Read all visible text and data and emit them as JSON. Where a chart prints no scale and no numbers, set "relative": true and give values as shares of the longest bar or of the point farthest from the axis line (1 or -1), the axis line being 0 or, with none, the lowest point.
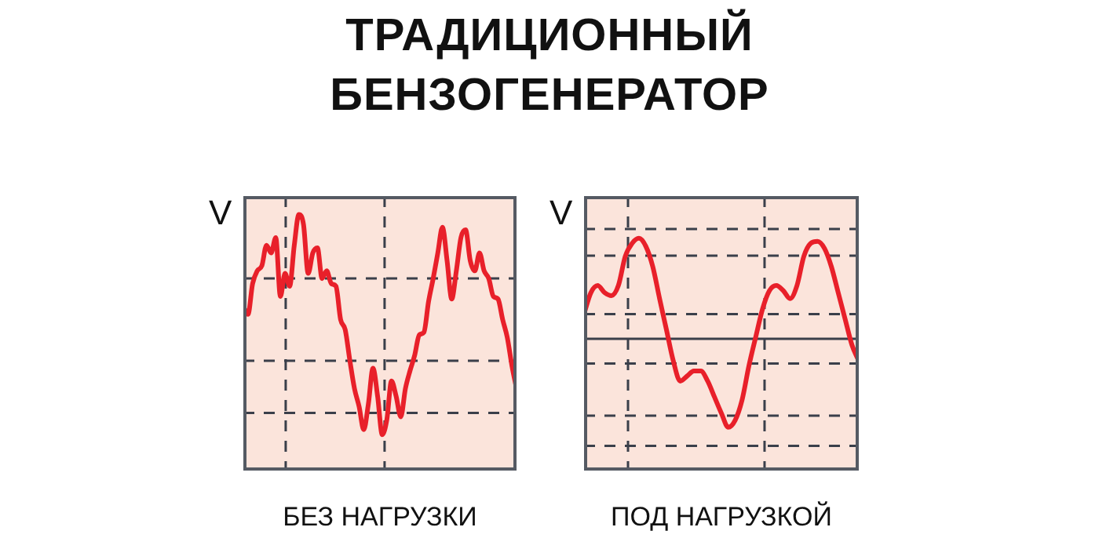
{
  "chart_data": [
    {
      "type": "line",
      "title": "ТРАДИЦИОННЫЙ БЕНЗОГЕНЕРАТОР",
      "xlabel": "БЕЗ НАГРУЗКИ",
      "ylabel": "V",
      "relative": true,
      "grid": true,
      "legend": false,
      "marker": "none",
      "categories": [
        null,
        null,
        null,
        null,
        null,
        null,
        null,
        null,
        null,
        null,
        null,
        null,
        null,
        null,
        null,
        null,
        null,
        null,
        null,
        null,
        null,
        null,
        null,
        null,
        null,
        null,
        null,
        null,
        null,
        null,
        null,
        null,
        null,
        null,
        null,
        null,
        null,
        null,
        null,
        null,
        null,
        null,
        null,
        null,
        null,
        null,
        null,
        null,
        null,
        null,
        null,
        null,
        null,
        null,
        null,
        null,
        null,
        null,
        null,
        null
      ],
      "series": [
        {
          "color": "#e8202a",
          "values": [
            0.64,
            0.61,
            0.73,
            0.78,
            0.8,
            0.88,
            0.85,
            0.91,
            0.68,
            0.77,
            0.72,
            0.88,
            1,
            0.96,
            0.77,
            0.85,
            0.87,
            0.75,
            0.78,
            0.73,
            0.72,
            0.59,
            0.55,
            0.43,
            0.32,
            0.25,
            0.16,
            0.26,
            0.4,
            0.29,
            0.14,
            0.2,
            0.35,
            0.29,
            0.21,
            0.32,
            0.39,
            0.45,
            0.53,
            0.54,
            0.66,
            0.75,
            0.85,
            0.95,
            0.82,
            0.67,
            0.78,
            0.91,
            0.94,
            0.82,
            0.78,
            0.85,
            0.78,
            0.75,
            0.68,
            0.67,
            0.59,
            0.52,
            0.41,
            0.32
          ]
        }
      ]
    },
    {
      "type": "line",
      "xlabel": "ПОД НАГРУЗКОЙ",
      "ylabel": "V",
      "relative": true,
      "grid": true,
      "legend": false,
      "marker": "none",
      "ref_lines": [
        {
          "axis": "y",
          "value": 0,
          "color": "#3a3f4a"
        }
      ],
      "categories": [
        null,
        null,
        null,
        null,
        null,
        null,
        null,
        null,
        null,
        null,
        null,
        null,
        null,
        null,
        null,
        null,
        null,
        null,
        null,
        null,
        null,
        null,
        null,
        null,
        null,
        null,
        null,
        null,
        null,
        null,
        null,
        null,
        null,
        null,
        null,
        null,
        null,
        null,
        null,
        null,
        null
      ],
      "series": [
        {
          "color": "#e8202a",
          "values": [
            0.25,
            0.46,
            0.53,
            0.46,
            0.43,
            0.53,
            0.82,
            0.95,
            1,
            0.92,
            0.72,
            0.4,
            0.09,
            -0.22,
            -0.42,
            -0.37,
            -0.32,
            -0.32,
            -0.42,
            -0.58,
            -0.74,
            -0.88,
            -0.81,
            -0.61,
            -0.27,
            0.02,
            0.3,
            0.48,
            0.53,
            0.48,
            0.4,
            0.53,
            0.82,
            0.95,
            0.97,
            0.9,
            0.72,
            0.46,
            0.2,
            -0.06,
            -0.22
          ]
        }
      ]
    }
  ]
}
